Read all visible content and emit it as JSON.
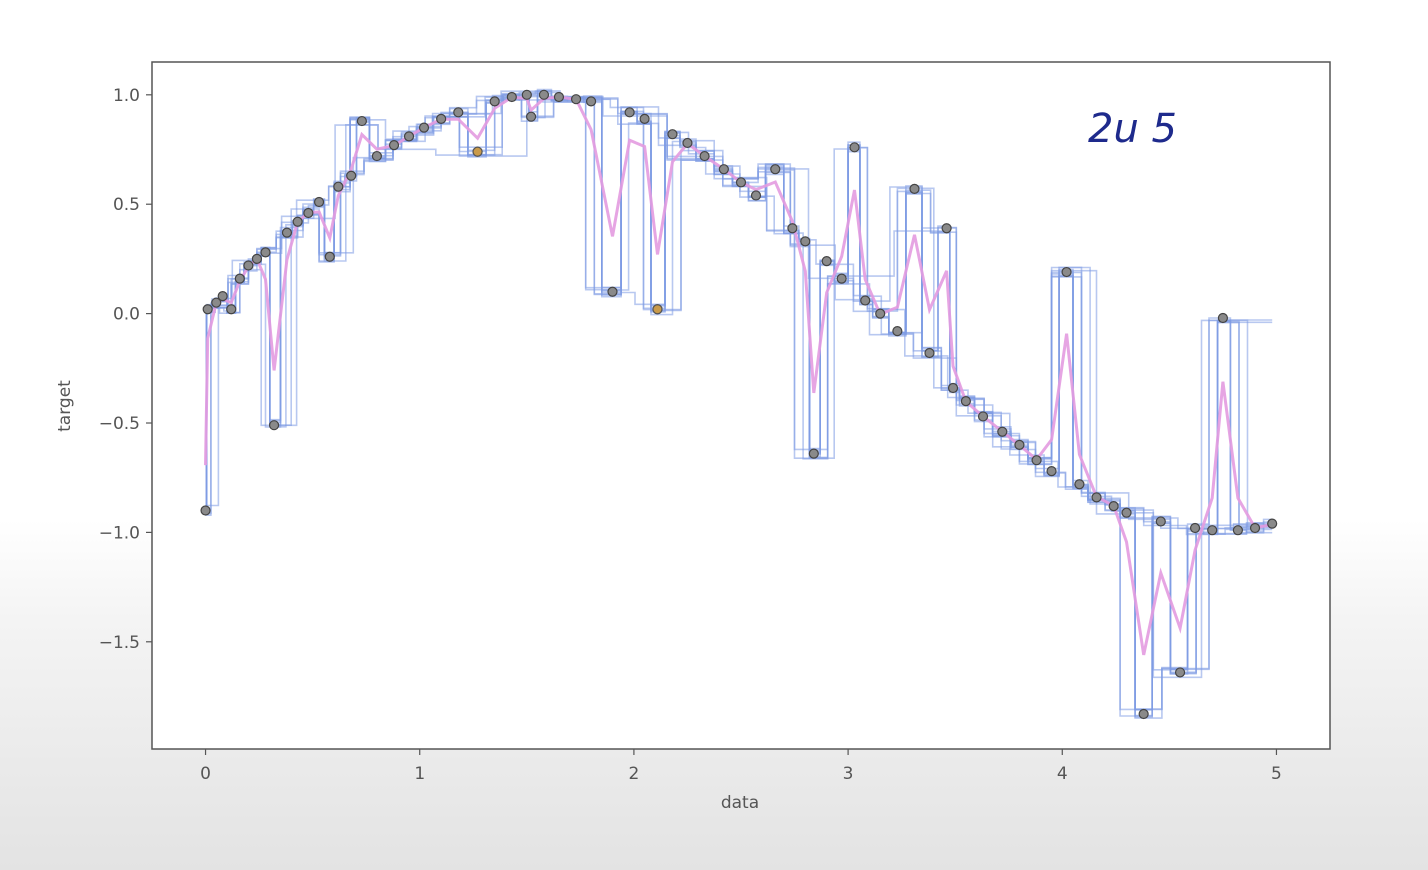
{
  "chart_data": {
    "type": "scatter",
    "title": "",
    "xlabel": "data",
    "ylabel": "target",
    "xlim": [
      -0.25,
      5.25
    ],
    "ylim": [
      -1.99,
      1.15
    ],
    "xticks": [
      0,
      1,
      2,
      3,
      4,
      5
    ],
    "yticks": [
      1.0,
      0.5,
      0.0,
      -0.5,
      -1.0,
      -1.5
    ],
    "xtick_labels": [
      "0",
      "1",
      "2",
      "3",
      "4",
      "5"
    ],
    "ytick_labels": [
      "1.0",
      "0.5",
      "0.0",
      "−0.5",
      "−1.0",
      "−1.5"
    ],
    "grid": false,
    "annotation": "2u 5",
    "colors": {
      "points": "#8a8a8a",
      "outlier_points": "#c99a4a",
      "step_curves": "#7d9be3",
      "mean_curve": "#e39be0",
      "annotation": "#1e2a8c"
    },
    "x": [
      0.0,
      0.01,
      0.05,
      0.08,
      0.12,
      0.16,
      0.2,
      0.24,
      0.28,
      0.32,
      0.38,
      0.43,
      0.48,
      0.53,
      0.58,
      0.62,
      0.68,
      0.73,
      0.8,
      0.88,
      0.95,
      1.02,
      1.1,
      1.18,
      1.27,
      1.35,
      1.43,
      1.5,
      1.52,
      1.58,
      1.65,
      1.73,
      1.8,
      1.9,
      1.98,
      2.05,
      2.11,
      2.18,
      2.25,
      2.33,
      2.42,
      2.5,
      2.57,
      2.66,
      2.74,
      2.8,
      2.84,
      2.9,
      2.97,
      3.03,
      3.08,
      3.15,
      3.23,
      3.31,
      3.38,
      3.46,
      3.49,
      3.55,
      3.63,
      3.72,
      3.8,
      3.88,
      3.95,
      4.02,
      4.08,
      4.16,
      4.24,
      4.3,
      4.38,
      4.46,
      4.55,
      4.62,
      4.7,
      4.75,
      4.82,
      4.9,
      4.98
    ],
    "y": [
      -0.9,
      0.02,
      0.05,
      0.08,
      0.02,
      0.16,
      0.22,
      0.25,
      0.28,
      -0.51,
      0.37,
      0.42,
      0.46,
      0.51,
      0.26,
      0.58,
      0.63,
      0.88,
      0.72,
      0.77,
      0.81,
      0.85,
      0.89,
      0.92,
      0.74,
      0.97,
      0.99,
      1.0,
      0.9,
      1.0,
      0.99,
      0.98,
      0.97,
      0.1,
      0.92,
      0.89,
      0.02,
      0.82,
      0.78,
      0.72,
      0.66,
      0.6,
      0.54,
      0.66,
      0.39,
      0.33,
      -0.64,
      0.24,
      0.16,
      0.76,
      0.06,
      0.0,
      -0.08,
      0.57,
      -0.18,
      0.39,
      -0.34,
      -0.4,
      -0.47,
      -0.54,
      -0.6,
      -0.67,
      -0.72,
      0.19,
      -0.78,
      -0.84,
      -0.88,
      -0.91,
      -1.83,
      -0.95,
      -1.64,
      -0.98,
      -0.99,
      -0.02,
      -0.99,
      -0.98,
      -0.96
    ],
    "outlier_x": [
      1.27,
      2.11
    ],
    "outlier_y": [
      0.74,
      0.02
    ]
  }
}
